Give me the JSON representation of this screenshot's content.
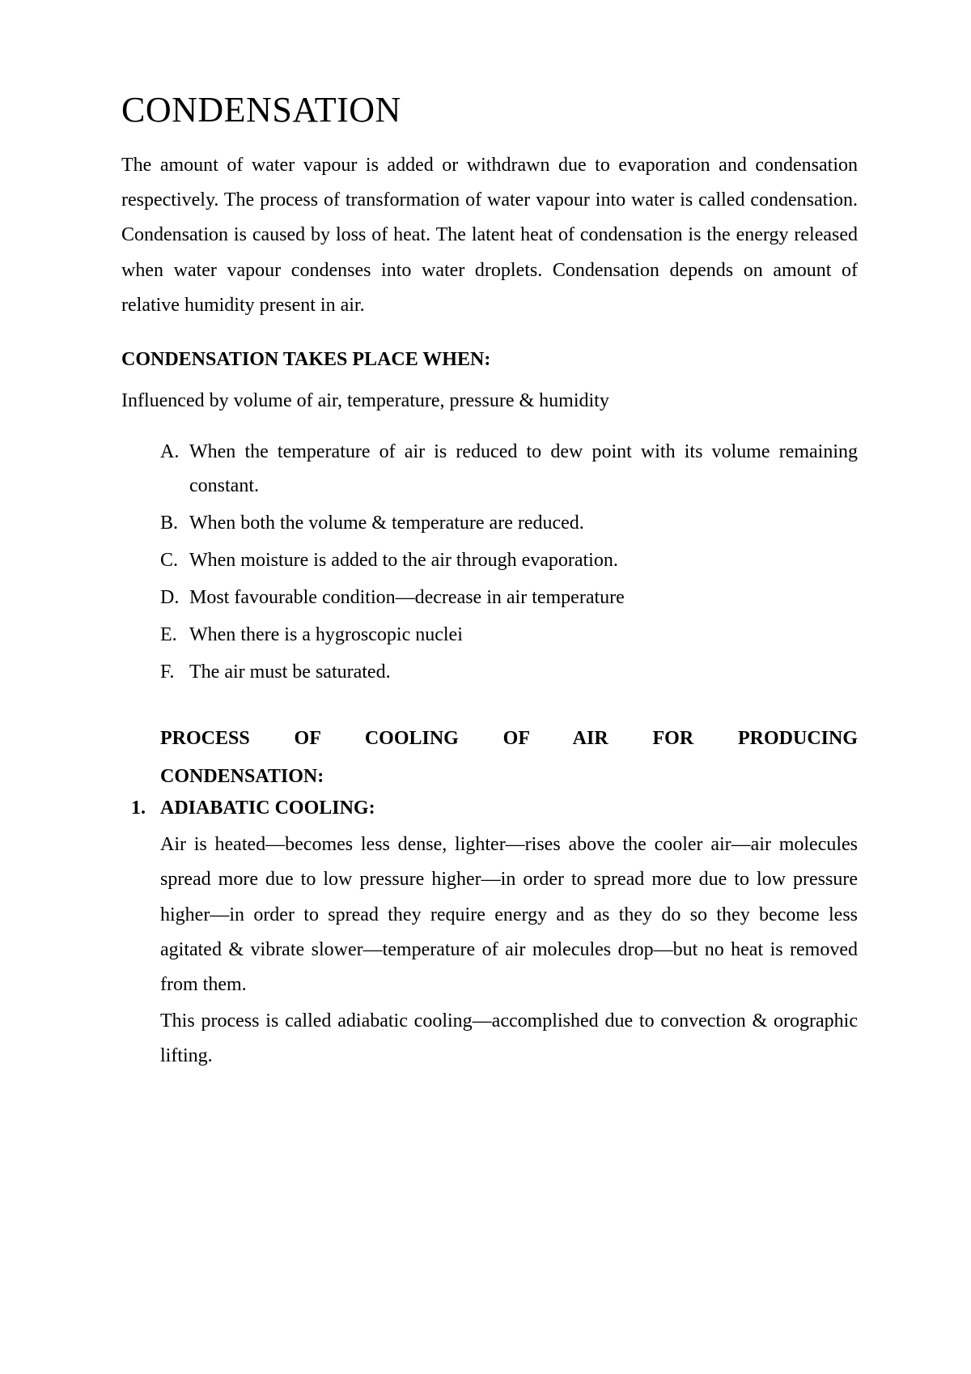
{
  "title": "CONDENSATION",
  "intro": "The amount of water vapour is added or withdrawn due to evaporation and condensation respectively. The process of transformation of water vapour into water is called condensation. Condensation is caused by loss of heat. The latent heat of condensation is the energy released when water vapour condenses into water droplets. Condensation depends on amount of relative humidity present in air.",
  "section1_heading": "CONDENSATION TAKES PLACE WHEN:",
  "influenced": "Influenced by volume of air, temperature, pressure & humidity",
  "list": {
    "A": {
      "marker": "A.",
      "text": "When the temperature of air is reduced to dew point with its volume remaining constant."
    },
    "B": {
      "marker": "B.",
      "text": "When both the volume & temperature are reduced."
    },
    "C": {
      "marker": "C.",
      "text": "When moisture is added to the air through evaporation."
    },
    "D": {
      "marker": "D.",
      "text": "Most favourable condition—decrease in air temperature"
    },
    "E": {
      "marker": "E.",
      "text": "When there is a hygroscopic nuclei"
    },
    "F": {
      "marker": "F.",
      "text": "The air must be saturated."
    }
  },
  "process_heading_line1": "PROCESS OF COOLING OF AIR FOR PRODUCING",
  "process_heading_line2": "CONDENSATION:",
  "sub1_marker": "1.",
  "sub1_heading": "ADIABATIC COOLING:",
  "sub1_para1": "Air is heated—becomes less dense, lighter—rises above the cooler air—air molecules spread more due to low pressure higher—in order to spread more due to low pressure higher—in order to spread they require energy and as they do so they become less agitated & vibrate slower—temperature of air molecules drop—but no heat is removed from them.",
  "sub1_para2": "This process is called adiabatic cooling—accomplished due to convection & orographic lifting.",
  "colors": {
    "background": "#ffffff",
    "text": "#000000"
  },
  "typography": {
    "title_fontsize": 44,
    "body_fontsize": 24,
    "font_family": "Times New Roman"
  }
}
